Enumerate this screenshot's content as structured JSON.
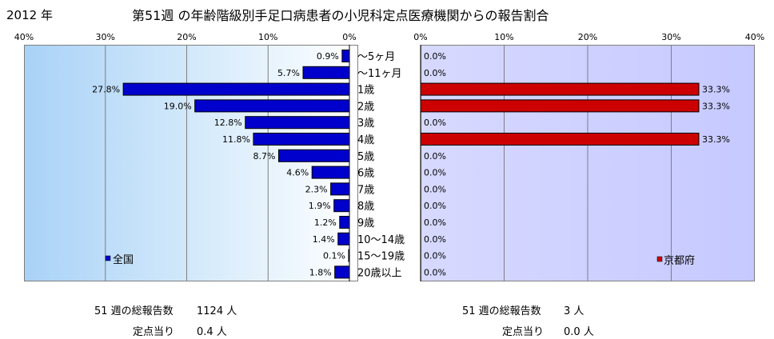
{
  "header": {
    "year": "2012 年",
    "title": "第51週 の年齢階級別手足口病患者の小児科定点医療機関からの報告割合"
  },
  "chart_data": [
    {
      "type": "bar",
      "orientation": "horizontal",
      "direction": "right-to-left",
      "categories": [
        "～5ヶ月",
        "～11ヶ月",
        "1歳",
        "2歳",
        "3歳",
        "4歳",
        "5歳",
        "6歳",
        "7歳",
        "8歳",
        "9歳",
        "10～14歳",
        "15～19歳",
        "20歳以上"
      ],
      "series": [
        {
          "name": "全国",
          "color": "#0000cc",
          "values": [
            0.9,
            5.7,
            27.8,
            19.0,
            12.8,
            11.8,
            8.7,
            4.6,
            2.3,
            1.9,
            1.2,
            1.4,
            0.1,
            1.8
          ]
        }
      ],
      "data_labels": [
        "0.9%",
        "5.7%",
        "27.8%",
        "19.0%",
        "12.8%",
        "11.8%",
        "8.7%",
        "4.6%",
        "2.3%",
        "1.9%",
        "1.2%",
        "1.4%",
        "0.1%",
        "1.8%"
      ],
      "xlim": [
        0,
        40
      ],
      "ticks": [
        "40%",
        "30%",
        "20%",
        "10%",
        "0%"
      ],
      "legend": "bottom-left",
      "grid": true
    },
    {
      "type": "bar",
      "orientation": "horizontal",
      "direction": "left-to-right",
      "categories": [
        "～5ヶ月",
        "～11ヶ月",
        "1歳",
        "2歳",
        "3歳",
        "4歳",
        "5歳",
        "6歳",
        "7歳",
        "8歳",
        "9歳",
        "10～14歳",
        "15～19歳",
        "20歳以上"
      ],
      "series": [
        {
          "name": "京都府",
          "color": "#cc0000",
          "values": [
            0.0,
            0.0,
            33.3,
            33.3,
            0.0,
            33.3,
            0.0,
            0.0,
            0.0,
            0.0,
            0.0,
            0.0,
            0.0,
            0.0
          ]
        }
      ],
      "data_labels": [
        "0.0%",
        "0.0%",
        "33.3%",
        "33.3%",
        "0.0%",
        "33.3%",
        "0.0%",
        "0.0%",
        "0.0%",
        "0.0%",
        "0.0%",
        "0.0%",
        "0.0%",
        "0.0%"
      ],
      "xlim": [
        0,
        40
      ],
      "ticks": [
        "0%",
        "10%",
        "20%",
        "30%",
        "40%"
      ],
      "legend": "bottom-right",
      "grid": true
    }
  ],
  "footer": {
    "national": {
      "total_label": "51 週の総報告数",
      "total_value": "1124 人",
      "per_label": "定点当り",
      "per_value": "0.4 人"
    },
    "kyoto": {
      "total_label": "51 週の総報告数",
      "total_value": "3 人",
      "per_label": "定点当り",
      "per_value": "0.0 人"
    }
  }
}
